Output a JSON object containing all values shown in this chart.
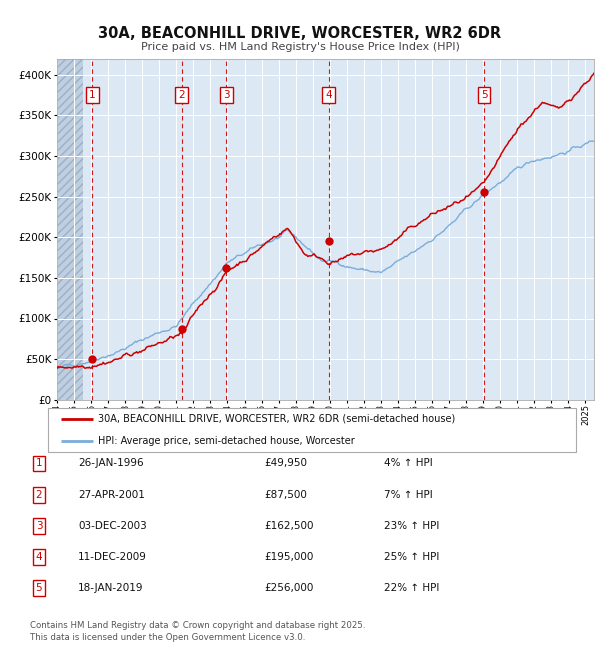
{
  "title": "30A, BEACONHILL DRIVE, WORCESTER, WR2 6DR",
  "subtitle": "Price paid vs. HM Land Registry's House Price Index (HPI)",
  "ylim": [
    0,
    420000
  ],
  "xlim_start": 1994.0,
  "xlim_end": 2025.5,
  "yticks": [
    0,
    50000,
    100000,
    150000,
    200000,
    250000,
    300000,
    350000,
    400000
  ],
  "ytick_labels": [
    "£0",
    "£50K",
    "£100K",
    "£150K",
    "£200K",
    "£250K",
    "£300K",
    "£350K",
    "£400K"
  ],
  "bg_color": "#dce9f5",
  "hatch_color": "#c0cfe0",
  "grid_color": "#ffffff",
  "red_line_color": "#cc0000",
  "blue_line_color": "#7aadda",
  "sale_marker_color": "#cc0000",
  "sale_marker_size": 6,
  "vline_color": "#cc0000",
  "label_box_color": "#cc0000",
  "label_text_color": "#cc0000",
  "transactions": [
    {
      "num": 1,
      "date": 1996.07,
      "price": 49950,
      "label": "1"
    },
    {
      "num": 2,
      "date": 2001.32,
      "price": 87500,
      "label": "2"
    },
    {
      "num": 3,
      "date": 2003.92,
      "price": 162500,
      "label": "3"
    },
    {
      "num": 4,
      "date": 2009.95,
      "price": 195000,
      "label": "4"
    },
    {
      "num": 5,
      "date": 2019.05,
      "price": 256000,
      "label": "5"
    }
  ],
  "table_rows": [
    {
      "num": "1",
      "date": "26-JAN-1996",
      "price": "£49,950",
      "hpi": "4% ↑ HPI"
    },
    {
      "num": "2",
      "date": "27-APR-2001",
      "price": "£87,500",
      "hpi": "7% ↑ HPI"
    },
    {
      "num": "3",
      "date": "03-DEC-2003",
      "price": "£162,500",
      "hpi": "23% ↑ HPI"
    },
    {
      "num": "4",
      "date": "11-DEC-2009",
      "price": "£195,000",
      "hpi": "25% ↑ HPI"
    },
    {
      "num": "5",
      "date": "18-JAN-2019",
      "price": "£256,000",
      "hpi": "22% ↑ HPI"
    }
  ],
  "footnote1": "Contains HM Land Registry data © Crown copyright and database right 2025.",
  "footnote2": "This data is licensed under the Open Government Licence v3.0.",
  "legend_label_red": "30A, BEACONHILL DRIVE, WORCESTER, WR2 6DR (semi-detached house)",
  "legend_label_blue": "HPI: Average price, semi-detached house, Worcester"
}
